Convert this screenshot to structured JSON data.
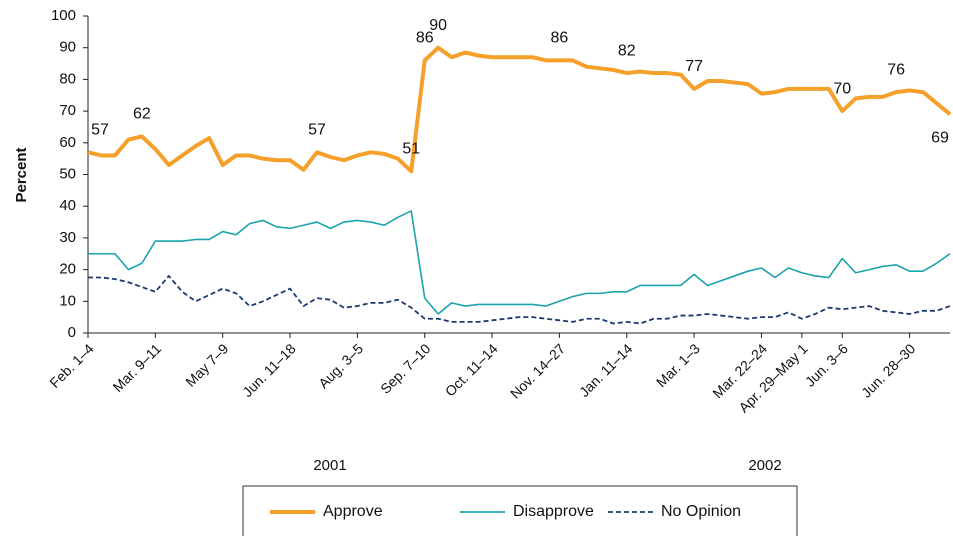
{
  "chart_data": {
    "type": "line",
    "ylabel": "Percent",
    "categories": [
      "Feb. 1–4",
      null,
      null,
      null,
      null,
      "Mar. 9–11",
      null,
      null,
      null,
      null,
      "May 7–9",
      null,
      null,
      null,
      null,
      "Jun. 11–18",
      null,
      null,
      null,
      null,
      "Aug. 3–5",
      null,
      null,
      null,
      null,
      "Sep. 7–10",
      null,
      null,
      null,
      null,
      "Oct. 11–14",
      null,
      null,
      null,
      null,
      "Nov. 14–27",
      null,
      null,
      null,
      null,
      "Jan. 11–14",
      null,
      null,
      null,
      null,
      "Mar. 1–3",
      null,
      null,
      null,
      null,
      "Mar. 22–24",
      null,
      null,
      "Apr. 29–May 1",
      null,
      null,
      "Jun. 3–6",
      null,
      null,
      null,
      null,
      "Jun. 28–30",
      null,
      null,
      null
    ],
    "year_labels": [
      "2001",
      "2002"
    ],
    "series": [
      {
        "name": "Approve",
        "color": "#f5a02a",
        "values": [
          57,
          56,
          56,
          61,
          62,
          58,
          53,
          56,
          59,
          61.5,
          53,
          56,
          56,
          55,
          54.5,
          54.5,
          51.5,
          57,
          55.5,
          54.5,
          56,
          57,
          56.5,
          55,
          51,
          86,
          90,
          87,
          88.5,
          87.5,
          87,
          87,
          87,
          87,
          86,
          86,
          86,
          84,
          83.5,
          83,
          82,
          82.5,
          82,
          82,
          81.5,
          77,
          79.5,
          79.5,
          79,
          78.5,
          75.5,
          76,
          77,
          77,
          77,
          77,
          70,
          74,
          74.5,
          74.5,
          76,
          76.5,
          76,
          72.5,
          69
        ]
      },
      {
        "name": "Disapprove",
        "color": "#1ba3ae",
        "values": [
          25,
          25,
          25,
          20,
          22,
          29,
          29,
          29,
          29.5,
          29.5,
          32,
          31,
          34.5,
          35.5,
          33.5,
          33,
          34,
          35,
          33,
          35,
          35.5,
          35,
          34,
          36.5,
          38.5,
          11,
          6,
          9.5,
          8.5,
          9,
          9,
          9,
          9,
          9,
          8.5,
          10,
          11.5,
          12.5,
          12.5,
          13,
          13,
          15,
          15,
          15,
          15,
          18.5,
          15,
          16.5,
          18,
          19.5,
          20.5,
          17.5,
          20.5,
          19,
          18,
          17.5,
          23.5,
          19,
          20,
          21,
          21.5,
          19.5,
          19.5,
          22,
          25
        ]
      },
      {
        "name": "No Opinion",
        "color": "#1d3a70",
        "dashed": true,
        "values": [
          17.5,
          17.5,
          17,
          16,
          14.5,
          13,
          18,
          13,
          10,
          12,
          14,
          12.5,
          8.5,
          10,
          12,
          14,
          8.5,
          11,
          10.5,
          8,
          8.5,
          9.5,
          9.5,
          10.5,
          8,
          4.5,
          4.5,
          3.5,
          3.5,
          3.5,
          4,
          4.5,
          5,
          5,
          4.5,
          4,
          3.5,
          4.5,
          4.5,
          3,
          3.5,
          3,
          4.5,
          4.5,
          5.5,
          5.5,
          6,
          5.5,
          5,
          4.5,
          5,
          5,
          6.5,
          4.5,
          6,
          8,
          7.5,
          8,
          8.5,
          7,
          6.5,
          6,
          7,
          7,
          8.5
        ]
      }
    ],
    "data_labels_at": [
      0,
      4,
      17,
      24,
      25,
      26,
      35,
      40,
      45,
      56,
      60,
      64
    ],
    "ylim": [
      0,
      100
    ],
    "yticks": [
      0,
      10,
      20,
      30,
      40,
      50,
      60,
      70,
      80,
      90,
      100
    ],
    "grid": false,
    "legend": "bottom"
  }
}
